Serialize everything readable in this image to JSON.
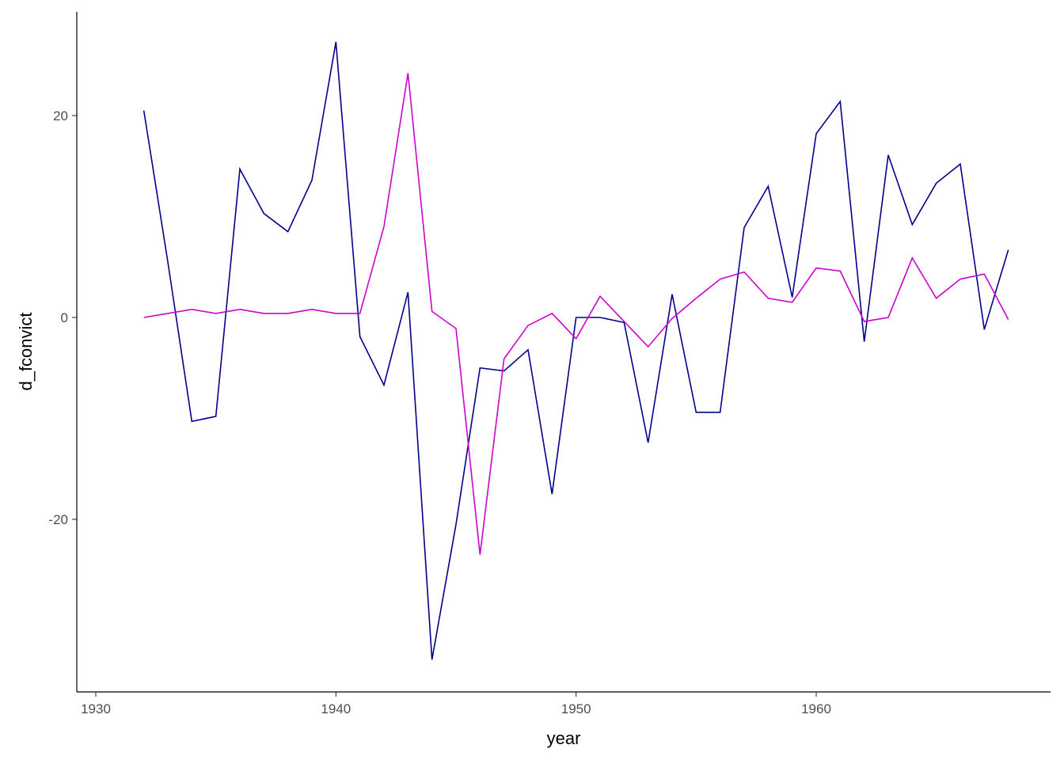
{
  "chart_data": {
    "type": "line",
    "title": "",
    "xlabel": "year",
    "ylabel": "d_fconvict",
    "xlim": [
      1930,
      1968
    ],
    "ylim": [
      -34,
      29
    ],
    "x_ticks": [
      {
        "value": 1930,
        "label": "1930"
      },
      {
        "value": 1940,
        "label": "1940"
      },
      {
        "value": 1950,
        "label": "1950"
      },
      {
        "value": 1960,
        "label": "1960"
      }
    ],
    "y_ticks": [
      {
        "value": 20,
        "label": "20"
      },
      {
        "value": 0,
        "label": "0"
      },
      {
        "value": -20,
        "label": "-20"
      }
    ],
    "grid": false,
    "legend": "none",
    "series": [
      {
        "color": "#00008B",
        "x": [
          1932,
          1933,
          1934,
          1935,
          1936,
          1937,
          1938,
          1939,
          1940,
          1941,
          1942,
          1943,
          1944,
          1945,
          1946,
          1947,
          1948,
          1949,
          1950,
          1951,
          1952,
          1953,
          1954,
          1955,
          1956,
          1957,
          1958,
          1959,
          1960,
          1961,
          1962,
          1963,
          1964,
          1965,
          1966,
          1967,
          1968
        ],
        "values": [
          20.5,
          5.5,
          -10.3,
          -9.8,
          14.7,
          10.3,
          8.5,
          13.6,
          27.3,
          -1.9,
          -6.7,
          2.5,
          -33.9,
          -20.5,
          -5.0,
          -5.3,
          -3.2,
          -17.5,
          0.0,
          0.0,
          -0.5,
          -12.4,
          2.3,
          -9.4,
          -9.4,
          8.9,
          13.0,
          2.0,
          18.2,
          21.4,
          -2.4,
          16.1,
          9.2,
          13.3,
          15.2,
          -1.2,
          6.7
        ]
      },
      {
        "color": "#CD00CD",
        "x": [
          1932,
          1933,
          1934,
          1935,
          1936,
          1937,
          1938,
          1939,
          1940,
          1941,
          1942,
          1943,
          1944,
          1945,
          1946,
          1947,
          1948,
          1949,
          1950,
          1951,
          1952,
          1953,
          1954,
          1955,
          1956,
          1957,
          1958,
          1959,
          1960,
          1961,
          1962,
          1963,
          1964,
          1965,
          1966,
          1967,
          1968
        ],
        "values": [
          0.0,
          0.4,
          0.8,
          0.4,
          0.8,
          0.4,
          0.4,
          0.8,
          0.4,
          0.4,
          9.0,
          24.2,
          0.6,
          -1.1,
          -23.5,
          -4.1,
          -0.8,
          0.4,
          -2.1,
          2.1,
          -0.4,
          -2.9,
          -0.1,
          1.9,
          3.8,
          4.5,
          1.9,
          1.5,
          4.9,
          4.6,
          -0.4,
          0.0,
          5.9,
          1.9,
          3.8,
          4.3,
          -0.2
        ]
      }
    ]
  }
}
